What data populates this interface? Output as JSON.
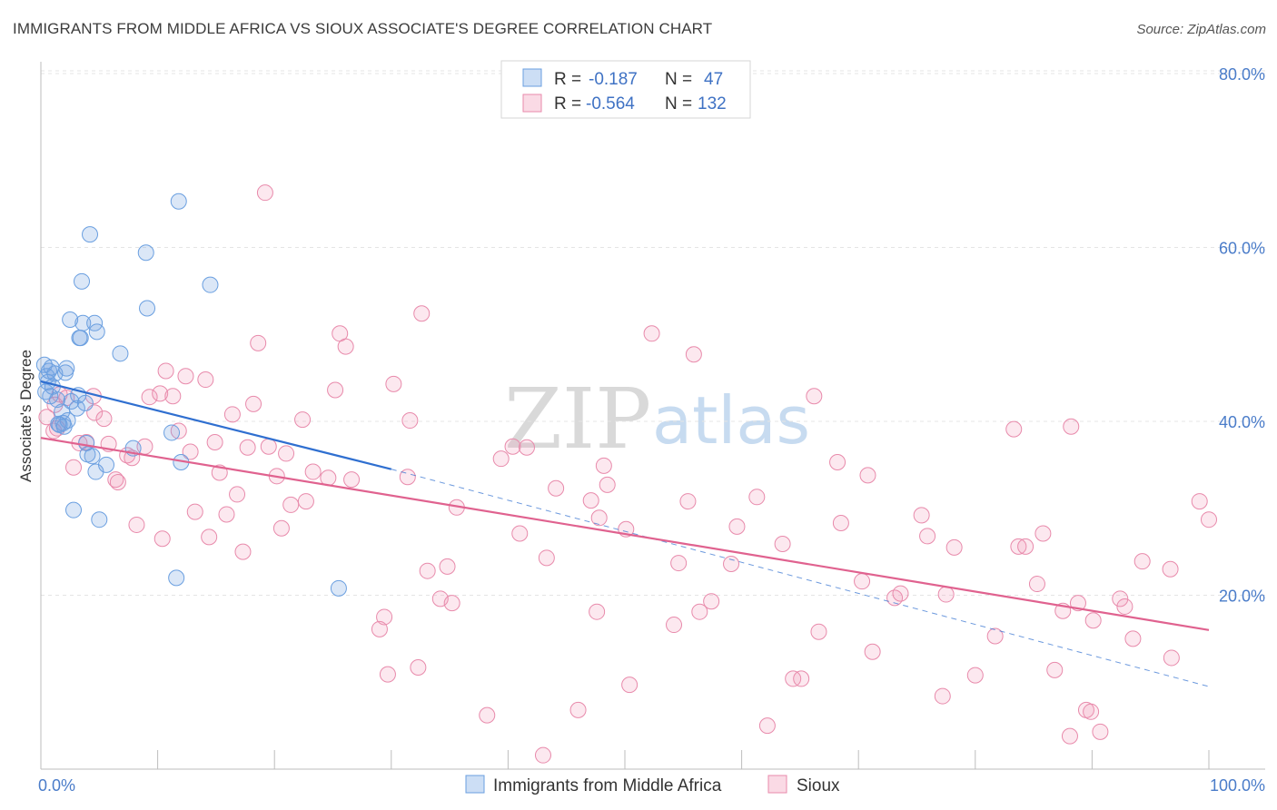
{
  "title": "IMMIGRANTS FROM MIDDLE AFRICA VS SIOUX ASSOCIATE'S DEGREE CORRELATION CHART",
  "source": "Source: ZipAtlas.com",
  "watermark": {
    "zip": "ZIP",
    "atlas": "atlas"
  },
  "colors": {
    "blue": "#6a9fe0",
    "blue_fill": "rgba(110,160,225,0.25)",
    "pink": "#e88aab",
    "pink_fill": "rgba(240,150,180,0.22)",
    "blue_line": "#2f6fd0",
    "pink_line": "#e0628f"
  },
  "legend": {
    "rows": [
      {
        "r_label": "R =",
        "r_value": "-0.187",
        "n_label": "N =",
        "n_value": "47"
      },
      {
        "r_label": "R =",
        "r_value": "-0.564",
        "n_label": "N =",
        "n_value": "132"
      }
    ]
  },
  "chart_data": {
    "type": "scatter",
    "title": "IMMIGRANTS FROM MIDDLE AFRICA VS SIOUX ASSOCIATE'S DEGREE CORRELATION CHART",
    "xlabel": "",
    "ylabel": "Associate's Degree",
    "xlim": [
      0,
      100
    ],
    "ylim": [
      0,
      82
    ],
    "x_tick_labels": [
      "0.0%",
      "100.0%"
    ],
    "y_ticks": [
      20,
      40,
      60,
      80
    ],
    "y_tick_labels": [
      "20.0%",
      "40.0%",
      "60.0%",
      "80.0%"
    ],
    "grid": true,
    "legend_position": "bottom",
    "series": [
      {
        "name": "Immigrants from Middle Africa",
        "color": "#6a9fe0",
        "trend": {
          "x": [
            0,
            30
          ],
          "y": [
            44.6,
            34.5
          ],
          "dashed_extension_to": [
            100,
            9.5
          ]
        },
        "points": [
          [
            0.3,
            46.5
          ],
          [
            0.5,
            45.2
          ],
          [
            0.6,
            44.5
          ],
          [
            0.7,
            45.8
          ],
          [
            0.8,
            42.9
          ],
          [
            0.9,
            46.2
          ],
          [
            1.0,
            44.0
          ],
          [
            1.2,
            45.5
          ],
          [
            1.4,
            42.5
          ],
          [
            1.6,
            39.6
          ],
          [
            1.8,
            41.1
          ],
          [
            1.9,
            39.8
          ],
          [
            2.1,
            45.6
          ],
          [
            2.2,
            46.1
          ],
          [
            2.3,
            40.1
          ],
          [
            2.5,
            51.7
          ],
          [
            2.6,
            42.3
          ],
          [
            2.8,
            29.8
          ],
          [
            3.1,
            41.5
          ],
          [
            3.2,
            43.0
          ],
          [
            3.3,
            49.6
          ],
          [
            3.4,
            49.6
          ],
          [
            3.5,
            56.1
          ],
          [
            3.6,
            51.3
          ],
          [
            3.8,
            42.1
          ],
          [
            3.9,
            37.5
          ],
          [
            4.0,
            36.2
          ],
          [
            4.2,
            61.5
          ],
          [
            4.4,
            36.0
          ],
          [
            4.6,
            51.3
          ],
          [
            4.7,
            34.2
          ],
          [
            4.8,
            50.3
          ],
          [
            5.0,
            28.7
          ],
          [
            5.6,
            35.0
          ],
          [
            6.8,
            47.8
          ],
          [
            7.9,
            36.9
          ],
          [
            9.0,
            59.4
          ],
          [
            9.1,
            53.0
          ],
          [
            11.2,
            38.7
          ],
          [
            11.6,
            22.0
          ],
          [
            11.8,
            65.3
          ],
          [
            12.0,
            35.3
          ],
          [
            14.5,
            55.7
          ],
          [
            25.5,
            20.8
          ],
          [
            1.5,
            39.7
          ],
          [
            2.0,
            39.4
          ],
          [
            0.4,
            43.4
          ]
        ]
      },
      {
        "name": "Sioux",
        "color": "#e88aab",
        "trend": {
          "x": [
            0,
            100
          ],
          "y": [
            38.1,
            16.0
          ]
        },
        "points": [
          [
            0.5,
            40.5
          ],
          [
            1.1,
            38.9
          ],
          [
            1.4,
            39.2
          ],
          [
            1.6,
            43.1
          ],
          [
            2.2,
            42.7
          ],
          [
            2.8,
            34.7
          ],
          [
            3.3,
            37.5
          ],
          [
            3.9,
            37.6
          ],
          [
            4.5,
            42.9
          ],
          [
            4.6,
            41.0
          ],
          [
            5.4,
            40.3
          ],
          [
            5.8,
            37.4
          ],
          [
            6.4,
            33.3
          ],
          [
            6.6,
            33.0
          ],
          [
            7.4,
            36.1
          ],
          [
            7.8,
            35.8
          ],
          [
            8.2,
            28.1
          ],
          [
            8.9,
            37.1
          ],
          [
            9.3,
            42.8
          ],
          [
            10.2,
            43.2
          ],
          [
            10.4,
            26.5
          ],
          [
            10.7,
            45.8
          ],
          [
            11.3,
            42.9
          ],
          [
            11.8,
            38.9
          ],
          [
            12.4,
            45.2
          ],
          [
            12.8,
            36.5
          ],
          [
            13.2,
            29.6
          ],
          [
            14.1,
            44.8
          ],
          [
            14.4,
            26.7
          ],
          [
            14.9,
            37.6
          ],
          [
            15.3,
            34.1
          ],
          [
            15.9,
            29.3
          ],
          [
            16.4,
            40.8
          ],
          [
            16.8,
            31.6
          ],
          [
            17.3,
            25.0
          ],
          [
            17.7,
            37.0
          ],
          [
            18.2,
            42.0
          ],
          [
            18.6,
            49.0
          ],
          [
            19.2,
            66.3
          ],
          [
            19.5,
            37.1
          ],
          [
            20.2,
            33.7
          ],
          [
            20.6,
            27.7
          ],
          [
            21.0,
            36.3
          ],
          [
            21.4,
            30.4
          ],
          [
            22.4,
            40.2
          ],
          [
            22.7,
            30.8
          ],
          [
            23.3,
            34.2
          ],
          [
            24.6,
            33.5
          ],
          [
            25.2,
            43.6
          ],
          [
            25.6,
            50.1
          ],
          [
            26.1,
            48.6
          ],
          [
            26.6,
            33.3
          ],
          [
            29.0,
            16.1
          ],
          [
            29.4,
            17.5
          ],
          [
            29.7,
            10.9
          ],
          [
            30.2,
            44.3
          ],
          [
            31.4,
            33.6
          ],
          [
            31.6,
            40.1
          ],
          [
            32.3,
            11.7
          ],
          [
            32.6,
            52.4
          ],
          [
            33.1,
            22.8
          ],
          [
            34.2,
            19.6
          ],
          [
            34.8,
            23.3
          ],
          [
            35.2,
            19.1
          ],
          [
            35.6,
            30.1
          ],
          [
            38.2,
            6.2
          ],
          [
            39.4,
            35.7
          ],
          [
            40.4,
            37.1
          ],
          [
            41.0,
            27.1
          ],
          [
            41.6,
            37.0
          ],
          [
            43.0,
            1.6
          ],
          [
            43.3,
            24.3
          ],
          [
            44.1,
            32.3
          ],
          [
            46.0,
            6.8
          ],
          [
            47.1,
            30.9
          ],
          [
            47.6,
            18.1
          ],
          [
            47.8,
            28.9
          ],
          [
            48.2,
            34.9
          ],
          [
            48.5,
            32.7
          ],
          [
            50.1,
            27.6
          ],
          [
            50.4,
            9.7
          ],
          [
            52.3,
            50.1
          ],
          [
            54.2,
            16.6
          ],
          [
            54.6,
            23.7
          ],
          [
            55.4,
            30.8
          ],
          [
            55.9,
            47.7
          ],
          [
            56.4,
            18.1
          ],
          [
            57.4,
            19.3
          ],
          [
            59.1,
            23.6
          ],
          [
            59.6,
            27.9
          ],
          [
            61.3,
            31.3
          ],
          [
            62.2,
            5.0
          ],
          [
            63.5,
            25.9
          ],
          [
            64.4,
            10.4
          ],
          [
            65.1,
            10.4
          ],
          [
            66.2,
            42.9
          ],
          [
            66.6,
            15.8
          ],
          [
            68.2,
            35.3
          ],
          [
            68.5,
            28.3
          ],
          [
            70.3,
            21.6
          ],
          [
            70.8,
            33.8
          ],
          [
            71.2,
            13.5
          ],
          [
            73.1,
            19.7
          ],
          [
            73.6,
            20.2
          ],
          [
            75.4,
            29.2
          ],
          [
            75.9,
            26.8
          ],
          [
            77.2,
            8.4
          ],
          [
            77.5,
            20.1
          ],
          [
            78.2,
            25.5
          ],
          [
            80.0,
            10.8
          ],
          [
            81.7,
            15.3
          ],
          [
            83.3,
            39.1
          ],
          [
            83.7,
            25.6
          ],
          [
            84.3,
            25.6
          ],
          [
            85.3,
            21.3
          ],
          [
            85.8,
            27.1
          ],
          [
            86.8,
            11.4
          ],
          [
            87.5,
            18.2
          ],
          [
            88.1,
            3.8
          ],
          [
            88.2,
            39.4
          ],
          [
            88.8,
            19.1
          ],
          [
            89.5,
            6.8
          ],
          [
            89.9,
            6.6
          ],
          [
            90.1,
            17.1
          ],
          [
            90.7,
            4.3
          ],
          [
            92.4,
            19.6
          ],
          [
            92.8,
            18.7
          ],
          [
            93.5,
            15.0
          ],
          [
            94.3,
            23.9
          ],
          [
            96.7,
            23.0
          ],
          [
            96.8,
            12.8
          ],
          [
            99.2,
            30.8
          ],
          [
            100.0,
            28.7
          ],
          [
            1.2,
            41.9
          ]
        ]
      }
    ]
  }
}
